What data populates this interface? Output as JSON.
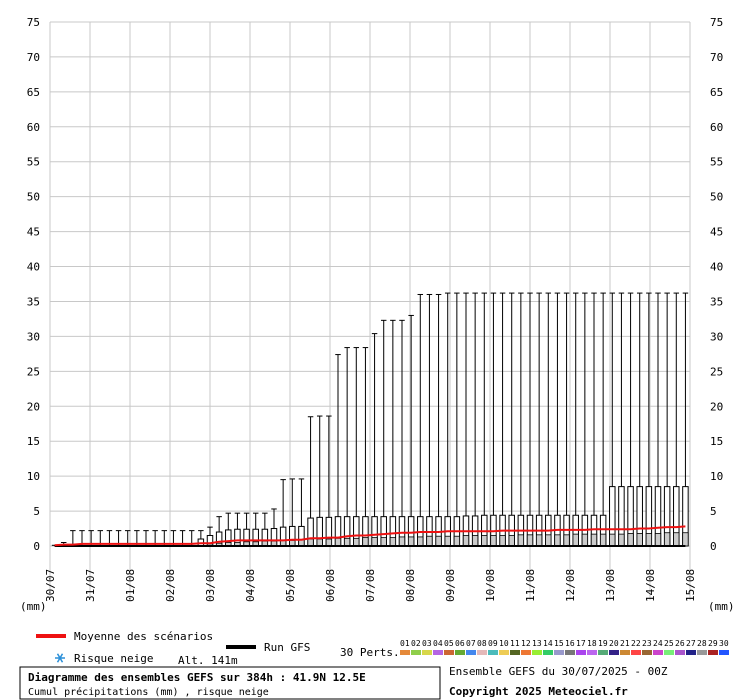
{
  "chart_data": {
    "type": "box",
    "title": "Diagramme des ensembles GEFS sur 384h : 41.9N 12.5E",
    "subtitle": "Cumul précipitations (mm) , risque neige",
    "ylabel": "(mm)",
    "ylim": [
      0,
      75
    ],
    "yticks": [
      0,
      5,
      10,
      15,
      20,
      25,
      30,
      35,
      40,
      45,
      50,
      55,
      60,
      65,
      70,
      75
    ],
    "grid": true,
    "date_labels": [
      "30/07",
      "31/07",
      "01/08",
      "02/08",
      "03/08",
      "04/08",
      "05/08",
      "06/08",
      "07/08",
      "08/08",
      "09/08",
      "10/08",
      "11/08",
      "12/08",
      "13/08",
      "14/08",
      "15/08"
    ],
    "step_hours": 6,
    "mean": [
      0.1,
      0.2,
      0.2,
      0.3,
      0.3,
      0.3,
      0.3,
      0.3,
      0.3,
      0.3,
      0.3,
      0.3,
      0.3,
      0.3,
      0.3,
      0.3,
      0.4,
      0.4,
      0.6,
      0.7,
      0.8,
      0.8,
      0.8,
      0.8,
      0.8,
      0.8,
      0.9,
      0.9,
      1.1,
      1.1,
      1.2,
      1.2,
      1.4,
      1.5,
      1.5,
      1.6,
      1.7,
      1.8,
      1.9,
      1.9,
      2.0,
      2.0,
      2.0,
      2.1,
      2.1,
      2.1,
      2.1,
      2.1,
      2.1,
      2.2,
      2.2,
      2.2,
      2.2,
      2.2,
      2.2,
      2.3,
      2.3,
      2.3,
      2.3,
      2.4,
      2.4,
      2.4,
      2.4,
      2.4,
      2.5,
      2.5,
      2.6,
      2.7,
      2.7,
      2.8
    ],
    "max": [
      0.1,
      0.5,
      2.2,
      2.2,
      2.2,
      2.2,
      2.2,
      2.2,
      2.2,
      2.2,
      2.2,
      2.2,
      2.2,
      2.2,
      2.2,
      2.2,
      2.2,
      2.7,
      4.2,
      4.7,
      4.7,
      4.7,
      4.7,
      4.7,
      5.3,
      9.5,
      9.6,
      9.6,
      18.5,
      18.6,
      18.6,
      27.4,
      28.4,
      28.4,
      28.4,
      30.4,
      32.3,
      32.3,
      32.3,
      33.0,
      36.0,
      36.0,
      36.0,
      36.2,
      36.2,
      36.2,
      36.2,
      36.2,
      36.2,
      36.2,
      36.2,
      36.2,
      36.2,
      36.2,
      36.2,
      36.2,
      36.2,
      36.2,
      36.2,
      36.2,
      36.2,
      36.2,
      36.2,
      36.2,
      36.2,
      36.2,
      36.2,
      36.2,
      36.2,
      36.2
    ],
    "q3": [
      0.0,
      0.0,
      0.0,
      0.0,
      0.0,
      0.0,
      0.0,
      0.0,
      0.0,
      0.0,
      0.0,
      0.0,
      0.0,
      0.0,
      0.0,
      0.0,
      1.0,
      1.5,
      2.0,
      2.3,
      2.4,
      2.4,
      2.4,
      2.4,
      2.5,
      2.7,
      2.8,
      2.8,
      4.0,
      4.1,
      4.1,
      4.2,
      4.2,
      4.2,
      4.2,
      4.2,
      4.2,
      4.2,
      4.2,
      4.2,
      4.2,
      4.2,
      4.2,
      4.2,
      4.2,
      4.3,
      4.3,
      4.4,
      4.4,
      4.4,
      4.4,
      4.4,
      4.4,
      4.4,
      4.4,
      4.4,
      4.4,
      4.4,
      4.4,
      4.4,
      4.4,
      8.5,
      8.5,
      8.5,
      8.5,
      8.5,
      8.5,
      8.5,
      8.5,
      8.5
    ],
    "q1": [
      0.0,
      0.0,
      0.0,
      0.0,
      0.0,
      0.0,
      0.0,
      0.0,
      0.0,
      0.0,
      0.0,
      0.0,
      0.0,
      0.0,
      0.0,
      0.0,
      0.0,
      0.0,
      0.0,
      0.0,
      0.0,
      0.0,
      0.0,
      0.0,
      0.0,
      0.0,
      0.0,
      0.0,
      0.0,
      0.0,
      0.0,
      0.0,
      0.0,
      0.0,
      0.0,
      0.0,
      0.0,
      0.0,
      0.0,
      0.0,
      0.0,
      0.0,
      0.0,
      0.0,
      0.0,
      0.0,
      0.0,
      0.0,
      0.0,
      0.0,
      0.0,
      0.0,
      0.0,
      0.0,
      0.0,
      0.0,
      0.0,
      0.0,
      0.0,
      0.0,
      0.0,
      0.0,
      0.0,
      0.0,
      0.0,
      0.0,
      0.0,
      0.0,
      0.0,
      0.0
    ],
    "median": [
      0.0,
      0.0,
      0.0,
      0.0,
      0.0,
      0.0,
      0.0,
      0.0,
      0.0,
      0.0,
      0.0,
      0.0,
      0.0,
      0.0,
      0.0,
      0.0,
      0.0,
      0.3,
      0.4,
      0.5,
      0.5,
      0.6,
      0.6,
      0.7,
      0.7,
      0.8,
      0.8,
      0.9,
      1.0,
      1.0,
      1.0,
      1.1,
      1.1,
      1.1,
      1.2,
      1.2,
      1.2,
      1.2,
      1.3,
      1.3,
      1.3,
      1.4,
      1.4,
      1.4,
      1.4,
      1.5,
      1.5,
      1.5,
      1.5,
      1.5,
      1.5,
      1.6,
      1.6,
      1.6,
      1.6,
      1.6,
      1.6,
      1.7,
      1.7,
      1.7,
      1.7,
      1.7,
      1.7,
      1.8,
      1.8,
      1.8,
      1.8,
      1.9,
      1.9,
      1.9
    ],
    "gfs": [
      0,
      0,
      0,
      0,
      0,
      0,
      0,
      0,
      0,
      0,
      0,
      0,
      0,
      0,
      0,
      0,
      0,
      0,
      0,
      0,
      0,
      0,
      0,
      0,
      0,
      0,
      0,
      0,
      0,
      0,
      0,
      0,
      0,
      0,
      0,
      0,
      0,
      0,
      0,
      0,
      0,
      0,
      0,
      0,
      0,
      0,
      0,
      0,
      0,
      0,
      0,
      0,
      0,
      0,
      0,
      0,
      0,
      0,
      0,
      0,
      0,
      0,
      0,
      0,
      0,
      0,
      0,
      0,
      0,
      0
    ],
    "colors": {
      "mean": "#ee1111",
      "gfs": "#000000",
      "grid": "#c8c8c8",
      "box": "#cccccc"
    }
  },
  "legend": {
    "mean_label": "Moyenne des scénarios",
    "gfs_label": "Run GFS",
    "snow_label": "Risque neige",
    "alt_label": "Alt. 141m",
    "perts_label": "30 Perts.",
    "perts_numbers": [
      "01",
      "02",
      "03",
      "04",
      "05",
      "06",
      "07",
      "08",
      "09",
      "10",
      "11",
      "12",
      "13",
      "14",
      "15",
      "16",
      "17",
      "18",
      "19",
      "20",
      "21",
      "22",
      "23",
      "24",
      "25",
      "26",
      "27",
      "28",
      "29",
      "30"
    ],
    "perts_colors": [
      "#e5893a",
      "#8fce4a",
      "#d7d74a",
      "#b565e3",
      "#cc6633",
      "#66aa33",
      "#4488ee",
      "#e4b9b9",
      "#4bbbbb",
      "#eecc55",
      "#556622",
      "#ee7733",
      "#99ee33",
      "#33cc66",
      "#9999cc",
      "#777777",
      "#aa44ee",
      "#bb66ee",
      "#55aa77",
      "#332288",
      "#cc8833",
      "#ff4444",
      "#996633",
      "#cc44cc",
      "#77ee77",
      "#aa55cc",
      "#222288",
      "#999999",
      "#aa2222",
      "#2255ff"
    ]
  },
  "footer": {
    "run_info": "Ensemble GEFS du 30/07/2025 - 00Z",
    "copyright": "Copyright 2025 Meteociel.fr"
  },
  "axis_unit_left": "(mm)",
  "axis_unit_right": "(mm)"
}
